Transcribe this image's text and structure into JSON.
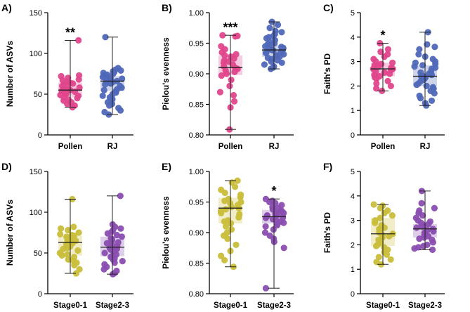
{
  "chart_data": [
    {
      "panel": "A)",
      "type": "box-scatter",
      "ylabel": "Number of ASVs",
      "ylim": [
        0,
        150
      ],
      "yticks": [
        "0",
        "50",
        "100",
        "150"
      ],
      "categories": [
        "Pollen",
        "RJ"
      ],
      "colors": [
        "#e0468c",
        "#5068b8"
      ],
      "significance": "**",
      "significance_group": 0,
      "series": [
        {
          "name": "Pollen",
          "min": 34,
          "q1": 46,
          "median": 55,
          "q3": 64,
          "max": 116,
          "points": [
            116,
            73,
            72,
            70,
            68,
            67,
            65,
            64,
            63,
            62,
            60,
            58,
            57,
            56,
            55,
            55,
            54,
            53,
            52,
            50,
            49,
            48,
            46,
            45,
            43,
            42,
            40,
            38,
            36,
            34
          ]
        },
        {
          "name": "RJ",
          "min": 25,
          "q1": 54,
          "median": 66,
          "q3": 72,
          "max": 120,
          "points": [
            120,
            82,
            80,
            79,
            78,
            77,
            76,
            75,
            74,
            73,
            72,
            71,
            70,
            69,
            68,
            67,
            66,
            66,
            65,
            64,
            63,
            62,
            60,
            58,
            56,
            55,
            54,
            52,
            50,
            48,
            46,
            44,
            42,
            40,
            38,
            36,
            33,
            30,
            28,
            25
          ]
        }
      ]
    },
    {
      "panel": "B)",
      "type": "box-scatter",
      "ylabel": "Pielou's evenness",
      "ylim": [
        0.8,
        1.0
      ],
      "yticks": [
        "0.80",
        "0.85",
        "0.90",
        "0.95",
        "1.00"
      ],
      "categories": [
        "Pollen",
        "RJ"
      ],
      "colors": [
        "#e0468c",
        "#5068b8"
      ],
      "significance": "***",
      "significance_group": 0,
      "series": [
        {
          "name": "Pollen",
          "min": 0.809,
          "q1": 0.898,
          "median": 0.91,
          "q3": 0.93,
          "max": 0.963,
          "points": [
            0.963,
            0.962,
            0.961,
            0.945,
            0.94,
            0.935,
            0.932,
            0.93,
            0.928,
            0.925,
            0.922,
            0.92,
            0.918,
            0.915,
            0.912,
            0.91,
            0.908,
            0.905,
            0.903,
            0.9,
            0.897,
            0.89,
            0.88,
            0.87,
            0.865,
            0.855,
            0.845,
            0.809
          ]
        },
        {
          "name": "RJ",
          "min": 0.908,
          "q1": 0.928,
          "median": 0.939,
          "q3": 0.947,
          "max": 0.985,
          "points": [
            0.985,
            0.98,
            0.975,
            0.97,
            0.968,
            0.965,
            0.962,
            0.96,
            0.958,
            0.955,
            0.952,
            0.95,
            0.948,
            0.947,
            0.945,
            0.944,
            0.942,
            0.941,
            0.94,
            0.939,
            0.938,
            0.936,
            0.935,
            0.934,
            0.932,
            0.93,
            0.929,
            0.928,
            0.926,
            0.924,
            0.922,
            0.92,
            0.918,
            0.915,
            0.912,
            0.91,
            0.908
          ]
        }
      ]
    },
    {
      "panel": "C)",
      "type": "box-scatter",
      "ylabel": "Faith's PD",
      "ylim": [
        0,
        5
      ],
      "yticks": [
        "0",
        "1",
        "2",
        "3",
        "4",
        "5"
      ],
      "categories": [
        "Pollen",
        "RJ"
      ],
      "colors": [
        "#e0468c",
        "#5068b8"
      ],
      "significance": "*",
      "significance_group": 0,
      "series": [
        {
          "name": "Pollen",
          "min": 1.8,
          "q1": 2.4,
          "median": 2.7,
          "q3": 2.95,
          "max": 3.75,
          "points": [
            3.75,
            3.5,
            3.4,
            3.3,
            3.2,
            3.1,
            3.0,
            2.95,
            2.9,
            2.85,
            2.8,
            2.75,
            2.7,
            2.7,
            2.65,
            2.6,
            2.55,
            2.5,
            2.45,
            2.4,
            2.35,
            2.3,
            2.2,
            2.1,
            2.0,
            1.9,
            1.8
          ]
        },
        {
          "name": "RJ",
          "min": 1.2,
          "q1": 2.0,
          "median": 2.4,
          "q3": 2.85,
          "max": 4.2,
          "points": [
            4.2,
            3.7,
            3.6,
            3.5,
            3.3,
            3.2,
            3.1,
            3.0,
            2.95,
            2.9,
            2.85,
            2.8,
            2.75,
            2.7,
            2.6,
            2.55,
            2.5,
            2.45,
            2.4,
            2.4,
            2.35,
            2.3,
            2.25,
            2.2,
            2.1,
            2.05,
            2.0,
            1.95,
            1.9,
            1.8,
            1.7,
            1.6,
            1.5,
            1.4,
            1.3,
            1.2
          ]
        }
      ]
    },
    {
      "panel": "D)",
      "type": "box-scatter",
      "ylabel": "Number of ASVs",
      "ylim": [
        0,
        150
      ],
      "yticks": [
        "0",
        "50",
        "100",
        "150"
      ],
      "categories": [
        "Stage0-1",
        "Stage2-3"
      ],
      "colors": [
        "#c9be3a",
        "#8a4eb0"
      ],
      "significance": "",
      "significance_group": 0,
      "series": [
        {
          "name": "Stage0-1",
          "min": 25,
          "q1": 47,
          "median": 63,
          "q3": 71,
          "max": 116,
          "points": [
            116,
            82,
            80,
            78,
            75,
            73,
            72,
            71,
            70,
            68,
            67,
            66,
            65,
            64,
            63,
            62,
            61,
            60,
            58,
            56,
            55,
            53,
            50,
            48,
            47,
            45,
            42,
            40,
            38,
            35,
            30,
            25
          ]
        },
        {
          "name": "Stage2-3",
          "min": 24,
          "q1": 46,
          "median": 57,
          "q3": 70,
          "max": 120,
          "points": [
            120,
            85,
            82,
            80,
            78,
            76,
            74,
            72,
            70,
            68,
            67,
            65,
            63,
            62,
            60,
            58,
            57,
            56,
            55,
            54,
            52,
            50,
            48,
            46,
            45,
            43,
            42,
            40,
            38,
            36,
            33,
            30,
            28,
            25,
            24
          ]
        }
      ]
    },
    {
      "panel": "E)",
      "type": "box-scatter",
      "ylabel": "Pielou's evenness",
      "ylim": [
        0.8,
        1.0
      ],
      "yticks": [
        "0.80",
        "0.85",
        "0.90",
        "0.95",
        "1.00"
      ],
      "categories": [
        "Stage0-1",
        "Stage2-3"
      ],
      "colors": [
        "#c9be3a",
        "#8a4eb0"
      ],
      "significance": "*",
      "significance_group": 1,
      "series": [
        {
          "name": "Stage0-1",
          "min": 0.844,
          "q1": 0.915,
          "median": 0.94,
          "q3": 0.957,
          "max": 0.985,
          "points": [
            0.985,
            0.982,
            0.975,
            0.97,
            0.965,
            0.962,
            0.958,
            0.955,
            0.952,
            0.95,
            0.948,
            0.945,
            0.942,
            0.94,
            0.938,
            0.935,
            0.932,
            0.93,
            0.925,
            0.92,
            0.918,
            0.915,
            0.91,
            0.905,
            0.9,
            0.895,
            0.89,
            0.88,
            0.87,
            0.862,
            0.855,
            0.844
          ]
        },
        {
          "name": "Stage2-3",
          "min": 0.809,
          "q1": 0.915,
          "median": 0.926,
          "q3": 0.937,
          "max": 0.955,
          "points": [
            0.955,
            0.952,
            0.95,
            0.948,
            0.945,
            0.942,
            0.94,
            0.938,
            0.936,
            0.935,
            0.933,
            0.932,
            0.93,
            0.929,
            0.928,
            0.927,
            0.926,
            0.925,
            0.924,
            0.922,
            0.92,
            0.918,
            0.916,
            0.914,
            0.912,
            0.91,
            0.905,
            0.9,
            0.895,
            0.89,
            0.885,
            0.875,
            0.809
          ]
        }
      ]
    },
    {
      "panel": "F)",
      "type": "box-scatter",
      "ylabel": "Faith's PD",
      "ylim": [
        0,
        5
      ],
      "yticks": [
        "0",
        "1",
        "2",
        "3",
        "4",
        "5"
      ],
      "categories": [
        "Stage0-1",
        "Stage2-3"
      ],
      "colors": [
        "#c9be3a",
        "#8a4eb0"
      ],
      "significance": "",
      "significance_group": 0,
      "series": [
        {
          "name": "Stage0-1",
          "min": 1.2,
          "q1": 1.95,
          "median": 2.45,
          "q3": 3.1,
          "max": 3.65,
          "points": [
            3.65,
            3.6,
            3.5,
            3.4,
            3.3,
            3.2,
            3.1,
            3.0,
            2.9,
            2.8,
            2.7,
            2.65,
            2.6,
            2.5,
            2.45,
            2.4,
            2.35,
            2.3,
            2.2,
            2.1,
            2.0,
            1.95,
            1.9,
            1.8,
            1.7,
            1.6,
            1.5,
            1.4,
            1.3,
            1.2
          ]
        },
        {
          "name": "Stage2-3",
          "min": 1.8,
          "q1": 2.3,
          "median": 2.65,
          "q3": 2.85,
          "max": 4.2,
          "points": [
            4.2,
            3.7,
            3.5,
            3.4,
            3.3,
            3.2,
            3.1,
            3.0,
            2.95,
            2.9,
            2.85,
            2.8,
            2.75,
            2.7,
            2.65,
            2.6,
            2.55,
            2.5,
            2.45,
            2.4,
            2.35,
            2.3,
            2.25,
            2.2,
            2.1,
            2.0,
            1.95,
            1.9,
            1.85,
            1.8
          ]
        }
      ]
    }
  ]
}
